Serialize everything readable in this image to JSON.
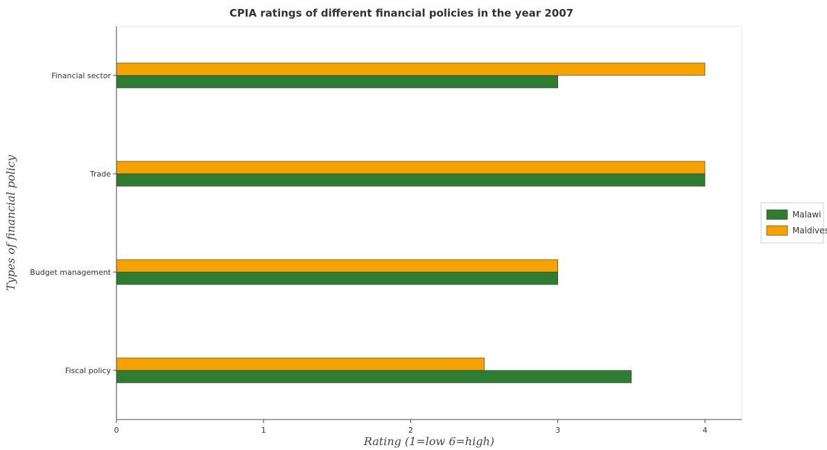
{
  "chart_data": {
    "type": "bar",
    "orientation": "horizontal",
    "title": "CPIA ratings of different financial policies in the year 2007",
    "xlabel": "Rating (1=low 6=high)",
    "ylabel": "Types of financial policy",
    "categories": [
      "Financial sector",
      "Trade",
      "Budget management",
      "Fiscal policy"
    ],
    "series": [
      {
        "name": "Malawi",
        "color": "#2e7d32",
        "values": [
          3,
          4,
          3,
          3.5
        ]
      },
      {
        "name": "Maldives",
        "color": "#f5a300",
        "values": [
          4,
          4,
          3,
          2.5
        ]
      }
    ],
    "xlim": [
      0,
      4.25
    ],
    "xticks": [
      "0",
      "1",
      "2",
      "3",
      "4"
    ],
    "grid": false,
    "legend_position": "right"
  }
}
